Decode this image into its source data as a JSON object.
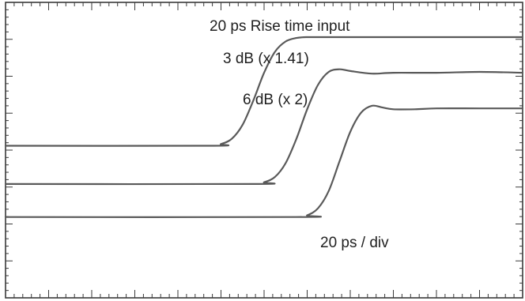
{
  "chart_data": {
    "type": "line",
    "title": "",
    "xlabel": "",
    "ylabel": "",
    "grid": false,
    "xlim": [
      0,
      240
    ],
    "ylim": [
      -1.75,
      1.65
    ],
    "x_divisions": 12,
    "annotations": {
      "trace1": "20 ps Rise time input",
      "trace2": "3 dB (x 1.41)",
      "trace3": "6 dB (x 2)",
      "scale": "20 ps / div"
    },
    "series": [
      {
        "name": "20 ps Rise time input",
        "color": "#595959",
        "x": [
          0,
          95,
          100,
          105,
          110,
          115,
          120,
          125,
          130,
          135,
          140,
          150,
          240
        ],
        "y": [
          0,
          0,
          0.02,
          0.08,
          0.24,
          0.52,
          0.84,
          1.08,
          1.2,
          1.24,
          1.25,
          1.25,
          1.25
        ]
      },
      {
        "name": "3 dB (x 1.41)",
        "color": "#595959",
        "x": [
          0,
          115,
          120,
          125,
          130,
          135,
          140,
          145,
          150,
          155,
          160,
          170,
          180,
          200,
          220,
          240
        ],
        "y": [
          -0.44,
          -0.44,
          -0.42,
          -0.36,
          -0.2,
          0.08,
          0.42,
          0.7,
          0.85,
          0.88,
          0.86,
          0.83,
          0.84,
          0.84,
          0.85,
          0.84
        ]
      },
      {
        "name": "6 dB (x 2)",
        "color": "#595959",
        "x": [
          0,
          135,
          140,
          145,
          150,
          155,
          160,
          165,
          170,
          175,
          180,
          190,
          200,
          220,
          240
        ],
        "y": [
          -0.82,
          -0.82,
          -0.8,
          -0.72,
          -0.52,
          -0.18,
          0.16,
          0.38,
          0.46,
          0.44,
          0.42,
          0.42,
          0.43,
          0.43,
          0.43
        ]
      }
    ]
  }
}
